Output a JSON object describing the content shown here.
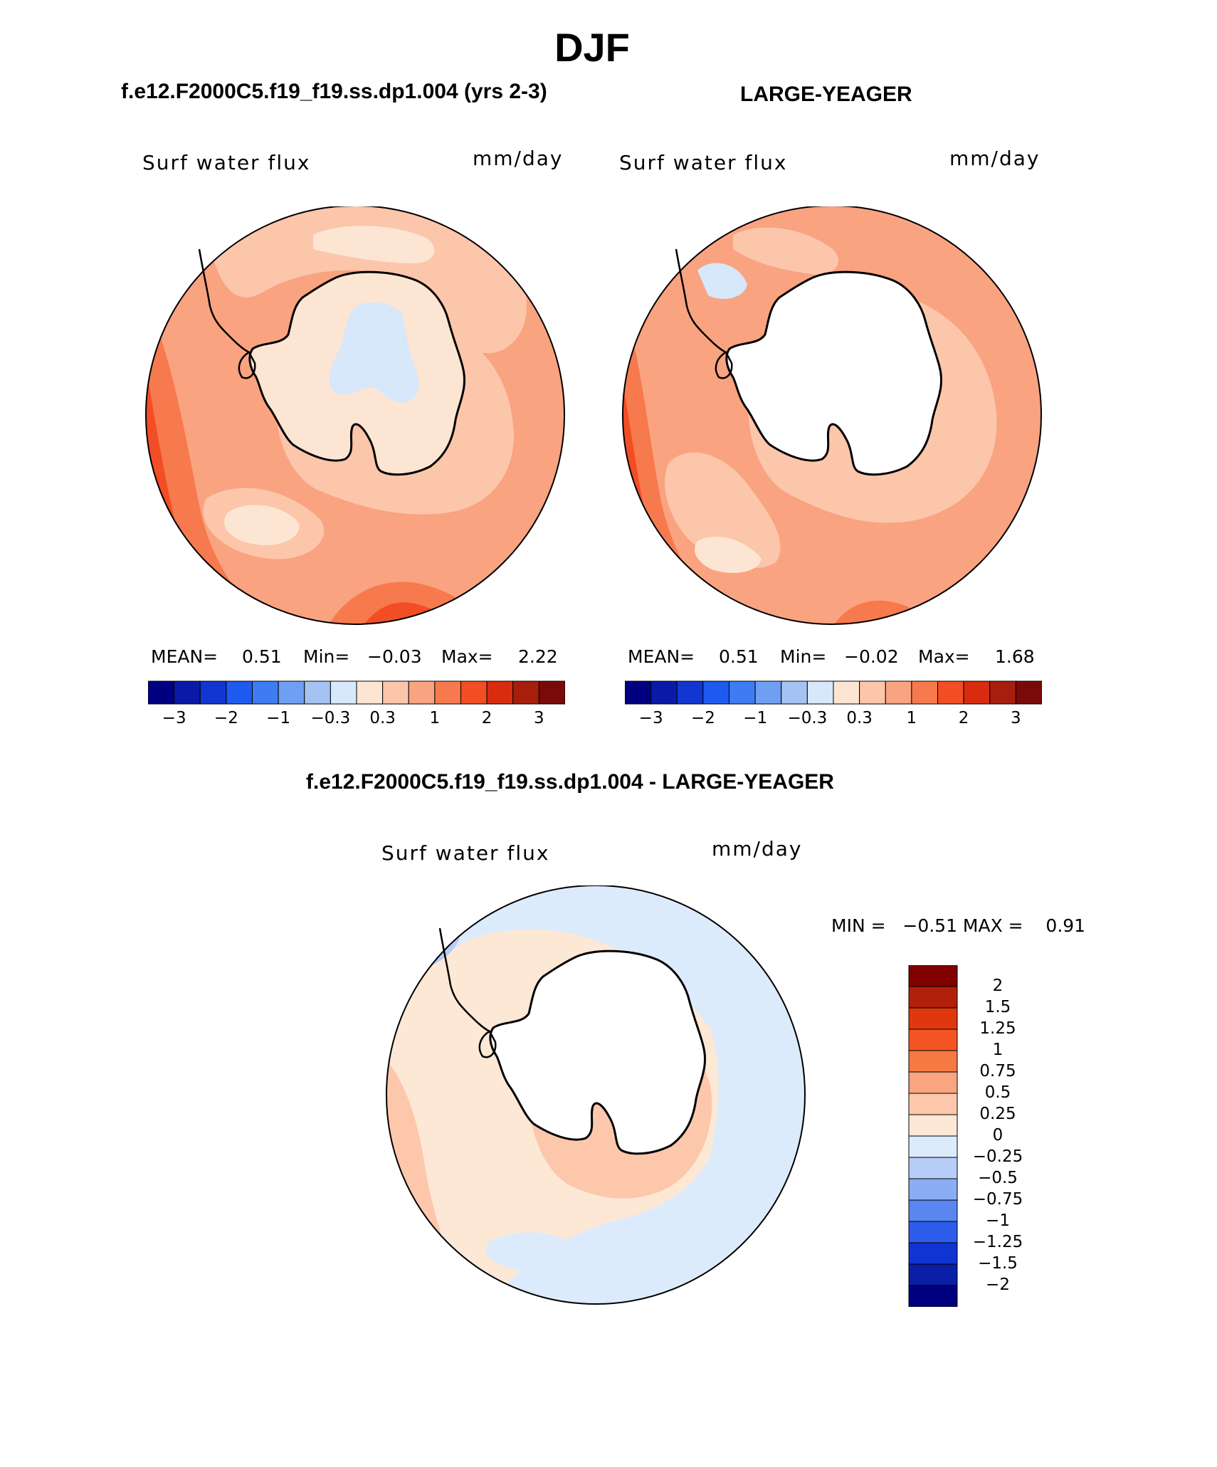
{
  "figure": {
    "title": "DJF"
  },
  "palette": {
    "full": [
      "#000080",
      "#0a1aa8",
      "#1136d2",
      "#1f5af0",
      "#3f7cf2",
      "#6f9ff2",
      "#a4c2f2",
      "#d6e8fa",
      "#fde5d3",
      "#fcc6ab",
      "#f9a381",
      "#f7794e",
      "#f24d24",
      "#d92b10",
      "#a81e0d",
      "#7a0a0a"
    ]
  },
  "panels": {
    "model": {
      "case_title": "f.e12.F2000C5.f19_f19.ss.dp1.004 (yrs 2-3)",
      "variable": "Surf water flux",
      "units": "mm/day",
      "stats": {
        "mean_label": "MEAN=",
        "mean": "0.51",
        "min_label": "Min=",
        "min": "−0.03",
        "max_label": "Max=",
        "max": "2.22"
      },
      "colorbar_ticks": [
        "−3",
        "−2",
        "−1",
        "−0.3",
        "0.3",
        "1",
        "2",
        "3"
      ]
    },
    "obs": {
      "case_title": "LARGE-YEAGER",
      "variable": "Surf water flux",
      "units": "mm/day",
      "stats": {
        "mean_label": "MEAN=",
        "mean": "0.51",
        "min_label": "Min=",
        "min": "−0.02",
        "max_label": "Max=",
        "max": "1.68"
      },
      "colorbar_ticks": [
        "−3",
        "−2",
        "−1",
        "−0.3",
        "0.3",
        "1",
        "2",
        "3"
      ]
    },
    "diff": {
      "case_title": "f.e12.F2000C5.f19_f19.ss.dp1.004 - LARGE-YEAGER",
      "variable": "Surf water flux",
      "units": "mm/day",
      "minmax_text": "MIN =   −0.51 MAX =    0.91",
      "colorbar_labels": [
        "2",
        "1.5",
        "1.25",
        "1",
        "0.75",
        "0.5",
        "0.25",
        "0",
        "−0.25",
        "−0.5",
        "−0.75",
        "−1",
        "−1.25",
        "−1.5",
        "−2"
      ],
      "colorbar_colors": [
        "#800000",
        "#b0200c",
        "#e0380e",
        "#f55522",
        "#f77a45",
        "#faa580",
        "#fdc7ab",
        "#fde8d6",
        "#dcebfc",
        "#b6cdf8",
        "#8cadf4",
        "#5a86f0",
        "#2e5cea",
        "#1034d2",
        "#0a1ea8",
        "#000080"
      ]
    }
  },
  "chart_data": [
    {
      "type": "heatmap",
      "title": "f.e12.F2000C5.f19_f19.ss.dp1.004 (yrs 2-3)",
      "subtitle": "Surf water flux",
      "units": "mm/day",
      "projection": "south polar stereographic",
      "stats": {
        "mean": 0.51,
        "min": -0.03,
        "max": 2.22
      },
      "contour_levels": [
        -3,
        -2.5,
        -2,
        -1.5,
        -1,
        -0.6,
        -0.3,
        0,
        0.3,
        0.6,
        1,
        1.5,
        2,
        2.5,
        3
      ],
      "colorbar_ticks": [
        -3,
        -2,
        -1,
        -0.3,
        0.3,
        1,
        2,
        3
      ]
    },
    {
      "type": "heatmap",
      "title": "LARGE-YEAGER",
      "subtitle": "Surf water flux",
      "units": "mm/day",
      "projection": "south polar stereographic",
      "stats": {
        "mean": 0.51,
        "min": -0.02,
        "max": 1.68
      },
      "contour_levels": [
        -3,
        -2.5,
        -2,
        -1.5,
        -1,
        -0.6,
        -0.3,
        0,
        0.3,
        0.6,
        1,
        1.5,
        2,
        2.5,
        3
      ],
      "colorbar_ticks": [
        -3,
        -2,
        -1,
        -0.3,
        0.3,
        1,
        2,
        3
      ]
    },
    {
      "type": "heatmap",
      "title": "f.e12.F2000C5.f19_f19.ss.dp1.004 - LARGE-YEAGER",
      "subtitle": "Surf water flux",
      "units": "mm/day",
      "projection": "south polar stereographic",
      "stats": {
        "min": -0.51,
        "max": 0.91
      },
      "contour_levels": [
        -2,
        -1.5,
        -1.25,
        -1,
        -0.75,
        -0.5,
        -0.25,
        0,
        0.25,
        0.5,
        0.75,
        1,
        1.25,
        1.5,
        2
      ]
    }
  ]
}
